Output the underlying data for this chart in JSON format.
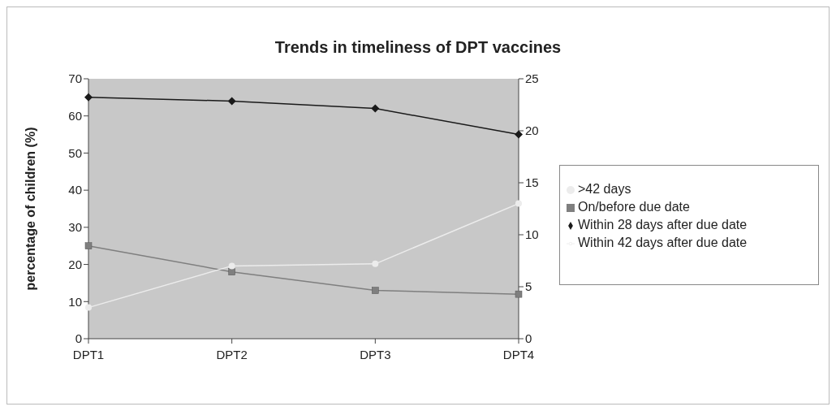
{
  "chart_data": {
    "type": "line",
    "title": "Trends in timeliness of DPT vaccines",
    "ylabel": "percentage of children (%)",
    "categories": [
      "DPT1",
      "DPT2",
      "DPT3",
      "DPT4"
    ],
    "series": [
      {
        "name": "On/before due date",
        "color": "#7f7f7f",
        "marker": "square",
        "values": [
          25,
          18,
          13,
          12
        ]
      },
      {
        "name": "Within 28 days after due date",
        "color": "#1a1a1a",
        "marker": "diamond",
        "values": [
          65,
          64,
          62,
          55
        ]
      },
      {
        "name": "Within 42 days after due date",
        "color": "#f2f2f2",
        "marker": "none",
        "values": [
          null,
          null,
          null,
          null
        ]
      },
      {
        "name": ">42 days",
        "color": "#ececec",
        "marker": "circle",
        "axis": "y2",
        "values": [
          3,
          7,
          7.2,
          13
        ]
      }
    ],
    "ylim": [
      0,
      70
    ],
    "yticks": [
      0,
      10,
      20,
      30,
      40,
      50,
      60,
      70
    ],
    "y2lim": [
      0,
      25
    ],
    "y2ticks": [
      0,
      5,
      10,
      15,
      20,
      25
    ],
    "legend": "right"
  }
}
